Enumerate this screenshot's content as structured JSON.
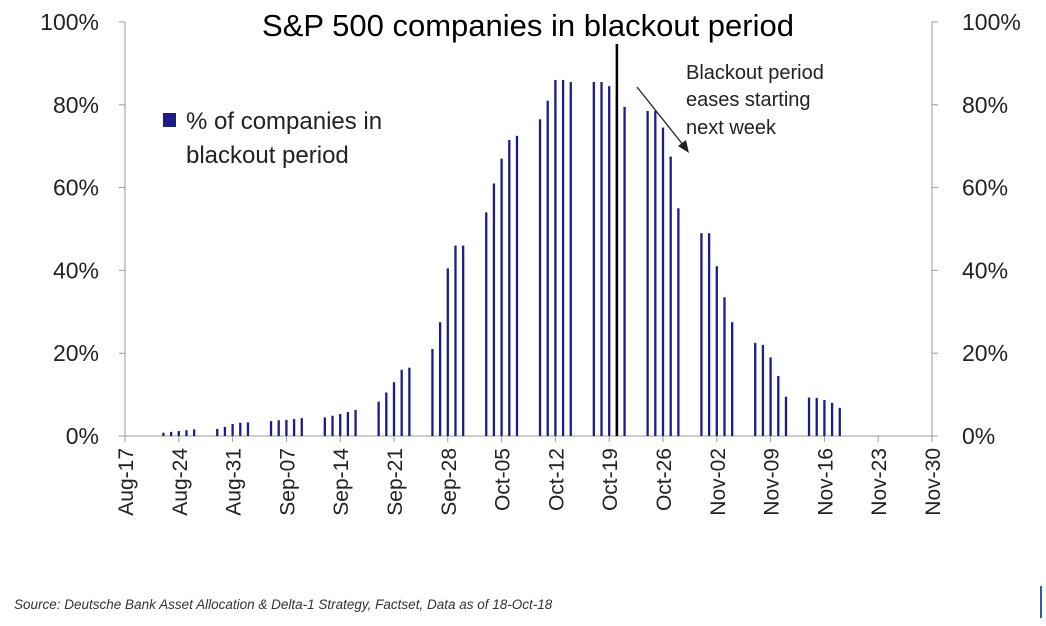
{
  "chart_data": {
    "type": "bar",
    "title": "S&P 500 companies in blackout period",
    "legend": {
      "label_line1": "% of companies in",
      "label_line2": "blackout period",
      "color": "#1c1c8a",
      "placement": "top-left"
    },
    "annotation": {
      "line1": "Blackout period",
      "line2": "eases starting",
      "line3": "next week"
    },
    "marker_date": "2018-10-20",
    "y_ticks": [
      "0%",
      "20%",
      "40%",
      "60%",
      "80%",
      "100%"
    ],
    "ylim": [
      0,
      100
    ],
    "x_ticks": [
      "Aug-17",
      "Aug-24",
      "Aug-31",
      "Sep-07",
      "Sep-14",
      "Sep-21",
      "Sep-28",
      "Oct-05",
      "Oct-12",
      "Oct-19",
      "Oct-26",
      "Nov-02",
      "Nov-09",
      "Nov-16",
      "Nov-23",
      "Nov-30"
    ],
    "xlim": [
      "2018-08-17",
      "2018-11-30"
    ],
    "grid": false,
    "bar_color": "#1c1c8a",
    "x": [
      "2018-08-22",
      "2018-08-23",
      "2018-08-24",
      "2018-08-25",
      "2018-08-26",
      "2018-08-29",
      "2018-08-30",
      "2018-08-31",
      "2018-09-01",
      "2018-09-02",
      "2018-09-05",
      "2018-09-06",
      "2018-09-07",
      "2018-09-08",
      "2018-09-09",
      "2018-09-12",
      "2018-09-13",
      "2018-09-14",
      "2018-09-15",
      "2018-09-16",
      "2018-09-19",
      "2018-09-20",
      "2018-09-21",
      "2018-09-22",
      "2018-09-23",
      "2018-09-26",
      "2018-09-27",
      "2018-09-28",
      "2018-09-29",
      "2018-09-30",
      "2018-10-03",
      "2018-10-04",
      "2018-10-05",
      "2018-10-06",
      "2018-10-07",
      "2018-10-10",
      "2018-10-11",
      "2018-10-12",
      "2018-10-13",
      "2018-10-14",
      "2018-10-17",
      "2018-10-18",
      "2018-10-19",
      "2018-10-20",
      "2018-10-21",
      "2018-10-24",
      "2018-10-25",
      "2018-10-26",
      "2018-10-27",
      "2018-10-28",
      "2018-10-31",
      "2018-11-01",
      "2018-11-02",
      "2018-11-03",
      "2018-11-04",
      "2018-11-07",
      "2018-11-08",
      "2018-11-09",
      "2018-11-10",
      "2018-11-11",
      "2018-11-14",
      "2018-11-15",
      "2018-11-16",
      "2018-11-17",
      "2018-11-18"
    ],
    "values": [
      0.8,
      1.0,
      1.2,
      1.4,
      1.6,
      1.7,
      2.2,
      2.9,
      3.2,
      3.3,
      3.6,
      3.8,
      3.9,
      4.1,
      4.3,
      4.5,
      4.9,
      5.3,
      5.8,
      6.3,
      8.3,
      10.5,
      13.0,
      16.0,
      16.5,
      21.0,
      27.5,
      40.5,
      46.0,
      46.0,
      54.0,
      61.0,
      67.0,
      71.5,
      72.5,
      76.5,
      81.0,
      86.0,
      86.0,
      85.5,
      85.5,
      85.5,
      84.5,
      82.5,
      79.5,
      78.5,
      78.5,
      74.5,
      67.5,
      55.0,
      49.0,
      49.0,
      41.0,
      33.5,
      27.5,
      22.5,
      22.0,
      19.0,
      14.5,
      9.5,
      9.3,
      9.2,
      8.7,
      8.0,
      6.8
    ]
  },
  "source": "Source: Deutsche Bank Asset Allocation & Delta-1 Strategy, Factset, Data as of 18-Oct-18"
}
